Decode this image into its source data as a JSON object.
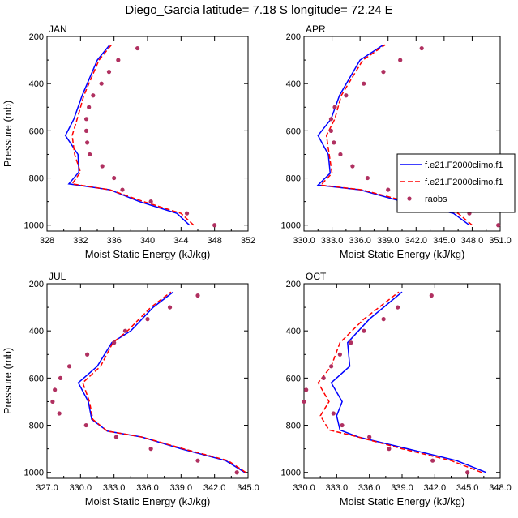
{
  "title": "Diego_Garcia  latitude= 7.18 S longitude= 72.24 E",
  "colors": {
    "model1": "#0000ff",
    "model2": "#ff0000",
    "raobs": "#b03060"
  },
  "legend": {
    "entries": [
      {
        "label": "f.e21.F2000climo.f1",
        "style": "solid",
        "color": "#0000ff"
      },
      {
        "label": "f.e21.F2000climo.f1",
        "style": "dashed",
        "color": "#ff0000"
      },
      {
        "label": "raobs",
        "style": "dot",
        "color": "#b03060"
      }
    ]
  },
  "chart_data": [
    {
      "type": "line",
      "panel": "JAN",
      "title": "JAN",
      "xlabel": "Moist Static Energy (kJ/kg)",
      "ylabel": "Pressure (mb)",
      "xlim": [
        328,
        352
      ],
      "ylim": [
        1025,
        200
      ],
      "xticks": [
        "328",
        "332",
        "336",
        "340",
        "344",
        "348",
        "352"
      ],
      "yticks": [
        "200",
        "400",
        "600",
        "800",
        "1000"
      ],
      "series": [
        {
          "name": "f.e21.F2000climo.f1",
          "style": "solid",
          "color": "#0000ff",
          "x": [
            345.0,
            343.5,
            339.0,
            335.5,
            330.6,
            331.8,
            331.7,
            330.2,
            331.2,
            332.2,
            334.0,
            335.5
          ],
          "y": [
            1000,
            950,
            900,
            850,
            825,
            775,
            700,
            620,
            550,
            450,
            300,
            235
          ]
        },
        {
          "name": "f.e21.F2000climo.f1",
          "style": "dashed",
          "color": "#ff0000",
          "x": [
            345.5,
            344.0,
            339.5,
            335.5,
            331.0,
            332.0,
            331.3,
            331.0,
            331.6,
            332.4,
            334.2,
            335.7
          ],
          "y": [
            1000,
            950,
            900,
            850,
            825,
            775,
            700,
            620,
            550,
            450,
            300,
            235
          ]
        },
        {
          "name": "raobs",
          "style": "dot",
          "color": "#b03060",
          "x": [
            348.0,
            344.7,
            340.4,
            337.0,
            336.0,
            334.6,
            333.1,
            332.8,
            332.7,
            332.7,
            333.0,
            333.5,
            334.5,
            335.4,
            336.5,
            338.8
          ],
          "y": [
            1000,
            950,
            900,
            850,
            800,
            750,
            700,
            650,
            600,
            550,
            500,
            450,
            400,
            350,
            300,
            250
          ]
        }
      ]
    },
    {
      "type": "line",
      "panel": "APR",
      "title": "APR",
      "xlabel": "Moist Static Energy (kJ/kg)",
      "ylabel": "Pressure (mb)",
      "xlim": [
        330,
        351
      ],
      "ylim": [
        1025,
        200
      ],
      "xticks": [
        "330.0",
        "333.0",
        "336.0",
        "339.0",
        "342.0",
        "345.0",
        "348.0",
        "351.0"
      ],
      "yticks": [
        "200",
        "400",
        "600",
        "800",
        "1000"
      ],
      "series": [
        {
          "name": "f.e21.F2000climo.f1",
          "style": "solid",
          "color": "#0000ff",
          "x": [
            347.7,
            346.0,
            340.5,
            336.0,
            331.5,
            332.8,
            332.6,
            331.5,
            332.9,
            333.8,
            336.0,
            338.5
          ],
          "y": [
            1000,
            950,
            900,
            850,
            830,
            780,
            700,
            620,
            550,
            450,
            300,
            235
          ]
        },
        {
          "name": "f.e21.F2000climo.f1",
          "style": "dashed",
          "color": "#ff0000",
          "x": [
            348.0,
            346.5,
            341.0,
            336.2,
            331.8,
            333.0,
            332.7,
            332.4,
            333.3,
            334.0,
            336.3,
            338.7
          ],
          "y": [
            1000,
            950,
            900,
            850,
            830,
            780,
            700,
            620,
            550,
            450,
            300,
            235
          ]
        },
        {
          "name": "raobs",
          "style": "dot",
          "color": "#b03060",
          "x": [
            350.8,
            347.7,
            342.7,
            339.0,
            336.8,
            335.2,
            333.9,
            333.2,
            332.9,
            332.9,
            333.3,
            334.5,
            336.4,
            338.5,
            340.3,
            342.6
          ],
          "y": [
            1000,
            950,
            900,
            850,
            800,
            750,
            700,
            650,
            600,
            550,
            500,
            450,
            400,
            350,
            300,
            250
          ]
        }
      ]
    },
    {
      "type": "line",
      "panel": "JUL",
      "title": "JUL",
      "xlabel": "Moist Static Energy (kJ/kg)",
      "ylabel": "Pressure (mb)",
      "xlim": [
        327,
        345
      ],
      "ylim": [
        1025,
        200
      ],
      "xticks": [
        "327.0",
        "330.0",
        "333.0",
        "336.0",
        "339.0",
        "342.0",
        "345.0"
      ],
      "yticks": [
        "200",
        "400",
        "600",
        "800",
        "1000"
      ],
      "series": [
        {
          "name": "f.e21.F2000climo.f1",
          "style": "solid",
          "color": "#0000ff",
          "x": [
            344.7,
            343.0,
            339.0,
            335.5,
            332.4,
            331.0,
            330.7,
            329.8,
            331.5,
            332.8,
            334.5,
            336.5,
            338.3
          ],
          "y": [
            1000,
            950,
            900,
            850,
            825,
            775,
            700,
            620,
            550,
            450,
            400,
            300,
            235
          ]
        },
        {
          "name": "f.e21.F2000climo.f1",
          "style": "dashed",
          "color": "#ff0000",
          "x": [
            344.8,
            343.2,
            339.2,
            335.5,
            332.4,
            331.1,
            330.8,
            330.2,
            331.8,
            332.9,
            334.2,
            336.3,
            338.1
          ],
          "y": [
            1000,
            950,
            900,
            850,
            825,
            775,
            700,
            620,
            550,
            450,
            400,
            300,
            235
          ]
        },
        {
          "name": "raobs",
          "style": "dot",
          "color": "#b03060",
          "x": [
            344.0,
            340.5,
            336.3,
            333.2,
            330.5,
            328.1,
            327.5,
            327.7,
            328.2,
            329.0,
            330.6,
            333.0,
            334.0,
            336.0,
            338.0,
            340.5
          ],
          "y": [
            1000,
            950,
            900,
            850,
            800,
            750,
            700,
            650,
            600,
            550,
            500,
            450,
            400,
            350,
            300,
            250
          ]
        }
      ]
    },
    {
      "type": "line",
      "panel": "OCT",
      "title": "OCT",
      "xlabel": "Moist Static Energy (kJ/kg)",
      "ylabel": "Pressure (mb)",
      "xlim": [
        330,
        348
      ],
      "ylim": [
        1025,
        200
      ],
      "xticks": [
        "330.0",
        "333.0",
        "336.0",
        "339.0",
        "342.0",
        "345.0",
        "348.0"
      ],
      "yticks": [
        "200",
        "400",
        "600",
        "800",
        "1000"
      ],
      "series": [
        {
          "name": "f.e21.F2000climo.f1",
          "style": "solid",
          "color": "#0000ff",
          "x": [
            346.7,
            344.0,
            339.5,
            335.0,
            333.3,
            333.0,
            333.5,
            332.5,
            334.2,
            334.0,
            336.0,
            339.0
          ],
          "y": [
            1000,
            950,
            900,
            850,
            820,
            760,
            700,
            620,
            550,
            450,
            350,
            235
          ]
        },
        {
          "name": "f.e21.F2000climo.f1",
          "style": "dashed",
          "color": "#ff0000",
          "x": [
            346.3,
            343.5,
            339.0,
            335.0,
            332.3,
            331.5,
            332.3,
            331.3,
            332.5,
            333.3,
            335.5,
            338.7
          ],
          "y": [
            1000,
            950,
            900,
            850,
            820,
            760,
            700,
            620,
            550,
            450,
            350,
            235
          ]
        },
        {
          "name": "raobs",
          "style": "dot",
          "color": "#b03060",
          "x": [
            345.0,
            341.8,
            337.8,
            336.0,
            333.5,
            332.7,
            330.0,
            330.2,
            331.8,
            332.5,
            333.3,
            334.3,
            335.5,
            337.3,
            338.6,
            341.7
          ],
          "y": [
            1000,
            950,
            900,
            850,
            800,
            750,
            700,
            650,
            600,
            550,
            500,
            450,
            400,
            350,
            300,
            250
          ]
        }
      ]
    }
  ]
}
